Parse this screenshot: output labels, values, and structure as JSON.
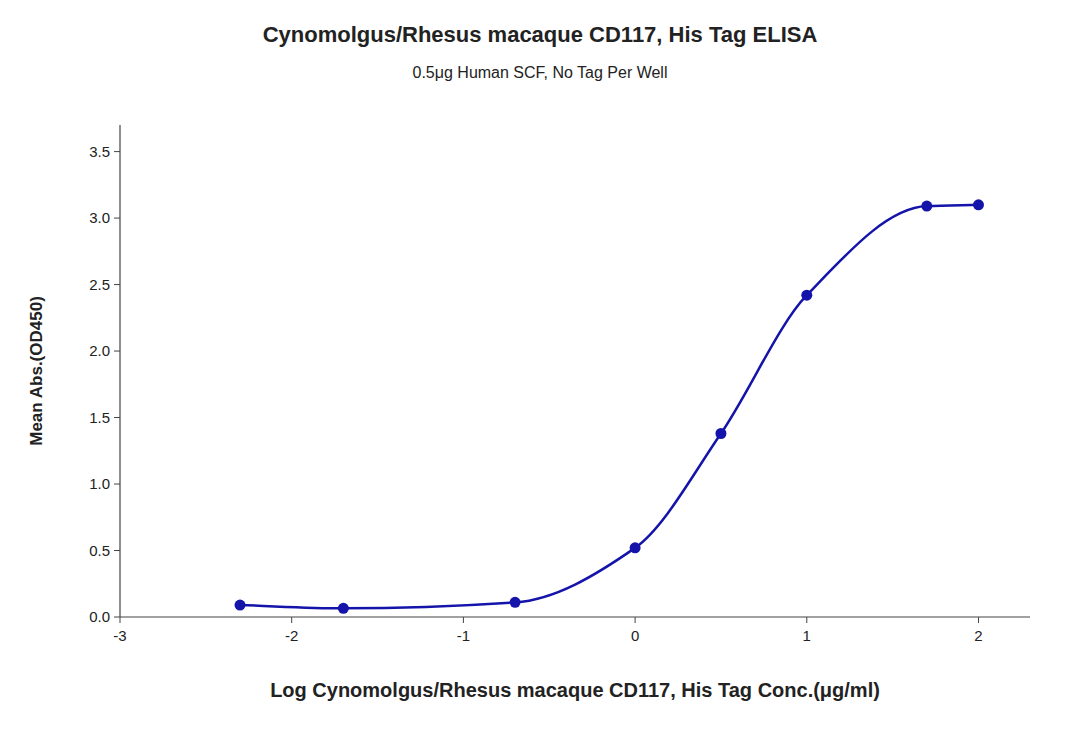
{
  "chart_data": {
    "type": "scatter",
    "title": "Cynomolgus/Rhesus macaque CD117, His Tag ELISA",
    "subtitle": "0.5μg Human SCF, No Tag Per Well",
    "xlabel": "Log Cynomolgus/Rhesus macaque CD117, His Tag Conc.(μg/ml)",
    "ylabel": "Mean Abs.(OD450)",
    "x": [
      -2.301,
      -1.699,
      -0.699,
      0.0,
      0.5,
      1.0,
      1.699,
      2.0
    ],
    "values": [
      0.09,
      0.065,
      0.11,
      0.52,
      1.38,
      2.42,
      3.09,
      3.1
    ],
    "color": "#1414aa",
    "marker": "circle",
    "line_style": "solid",
    "xlim": [
      -3,
      2.3
    ],
    "xticks": [
      -3,
      -2,
      -1,
      0,
      1,
      2
    ],
    "ylim": [
      0.0,
      3.7
    ],
    "yticks": [
      {
        "value": 0.0,
        "label": "0.0"
      },
      0.5,
      {
        "value": 1.0,
        "label": "1.0"
      },
      1.5,
      {
        "value": 2.0,
        "label": "2.0"
      },
      2.5,
      {
        "value": 3.0,
        "label": "3.0"
      },
      3.5
    ],
    "grid": false
  }
}
